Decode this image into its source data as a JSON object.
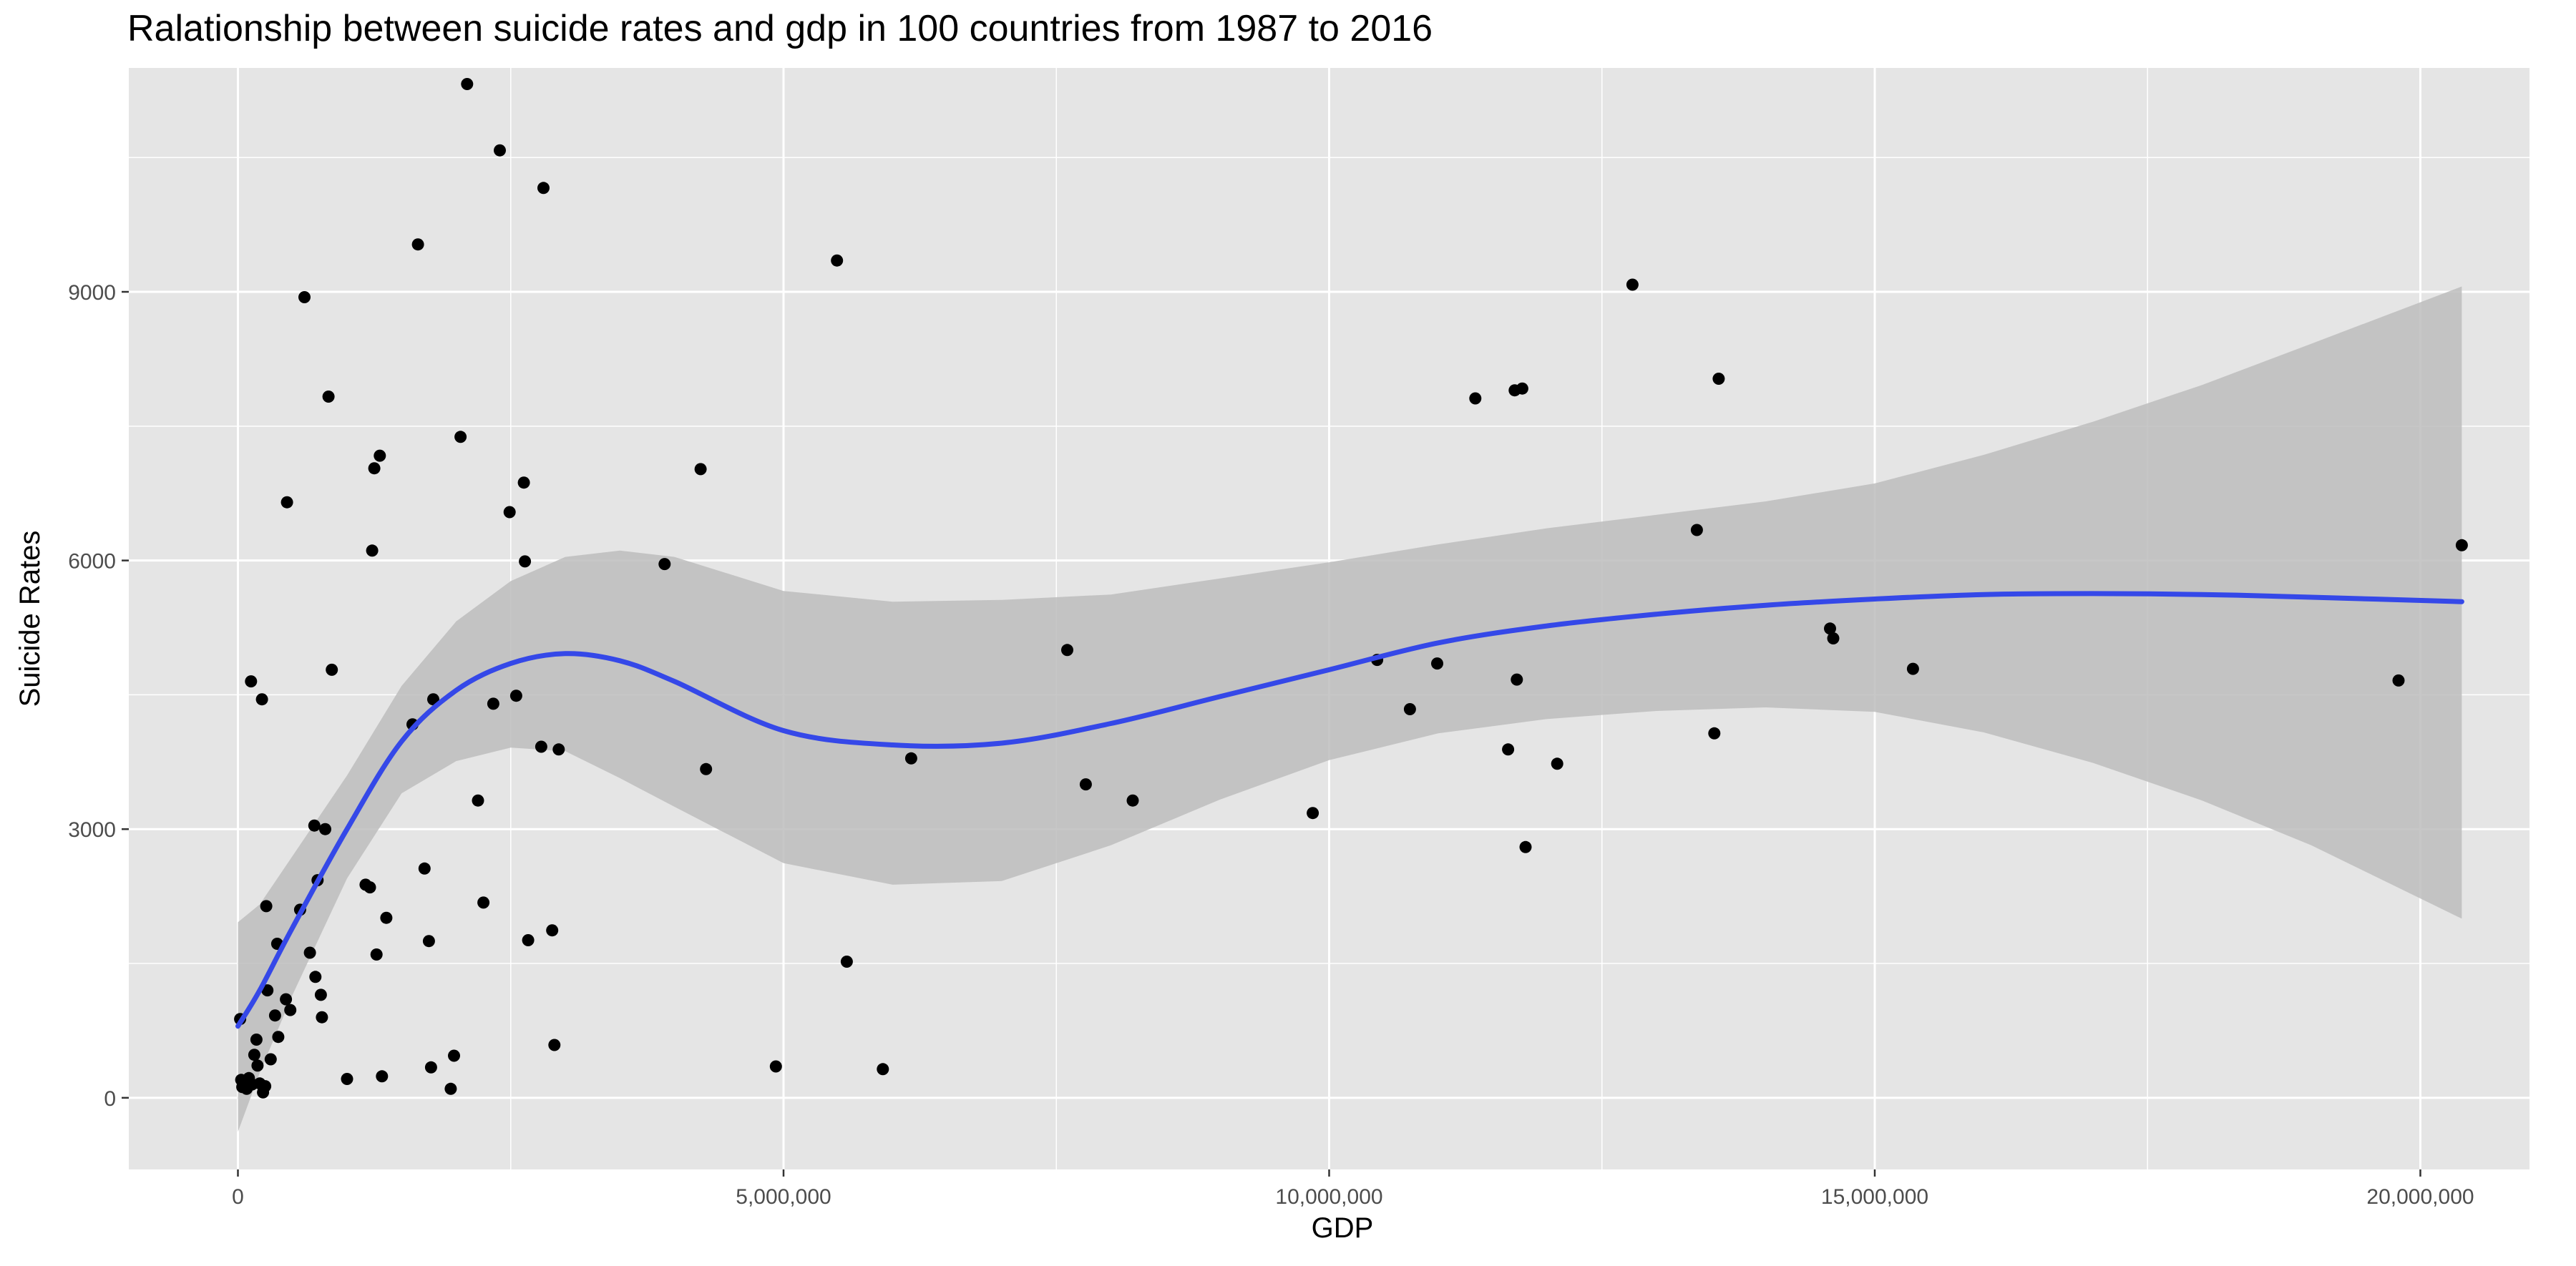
{
  "chart_data": {
    "type": "scatter",
    "title": "Ralationship between suicide rates and gdp in 100 countries from 1987 to 2016",
    "xlabel": "GDP",
    "ylabel": "Suicide Rates",
    "xlim": [
      -1000000,
      21000000
    ],
    "ylim": [
      -800,
      11500
    ],
    "x_ticks": [
      0,
      5000000,
      10000000,
      15000000,
      20000000
    ],
    "x_tick_labels": [
      "0",
      "5,000,000",
      "10,000,000",
      "15,000,000",
      "20,000,000"
    ],
    "y_ticks": [
      0,
      3000,
      6000,
      9000
    ],
    "y_tick_labels": [
      "0",
      "3000",
      "6000",
      "9000"
    ],
    "grid": true,
    "colors": {
      "panel_bg": "#e5e5e5",
      "grid": "#ffffff",
      "points": "#000000",
      "smooth_line": "#3548e8",
      "confidence_band": "#bdbdbd"
    },
    "points": [
      {
        "x": 20000,
        "y": 880
      },
      {
        "x": 30000,
        "y": 200
      },
      {
        "x": 40000,
        "y": 120
      },
      {
        "x": 60000,
        "y": 180
      },
      {
        "x": 80000,
        "y": 100
      },
      {
        "x": 100000,
        "y": 220
      },
      {
        "x": 120000,
        "y": 4650
      },
      {
        "x": 130000,
        "y": 150
      },
      {
        "x": 150000,
        "y": 480
      },
      {
        "x": 170000,
        "y": 650
      },
      {
        "x": 180000,
        "y": 360
      },
      {
        "x": 200000,
        "y": 160
      },
      {
        "x": 220000,
        "y": 4450
      },
      {
        "x": 230000,
        "y": 60
      },
      {
        "x": 250000,
        "y": 130
      },
      {
        "x": 260000,
        "y": 2140
      },
      {
        "x": 270000,
        "y": 1200
      },
      {
        "x": 300000,
        "y": 430
      },
      {
        "x": 340000,
        "y": 920
      },
      {
        "x": 360000,
        "y": 1720
      },
      {
        "x": 370000,
        "y": 680
      },
      {
        "x": 440000,
        "y": 1100
      },
      {
        "x": 450000,
        "y": 6650
      },
      {
        "x": 480000,
        "y": 980
      },
      {
        "x": 570000,
        "y": 2100
      },
      {
        "x": 610000,
        "y": 8940
      },
      {
        "x": 660000,
        "y": 1620
      },
      {
        "x": 700000,
        "y": 3040
      },
      {
        "x": 710000,
        "y": 1350
      },
      {
        "x": 730000,
        "y": 2430
      },
      {
        "x": 760000,
        "y": 1150
      },
      {
        "x": 770000,
        "y": 900
      },
      {
        "x": 800000,
        "y": 3000
      },
      {
        "x": 830000,
        "y": 7830
      },
      {
        "x": 860000,
        "y": 4780
      },
      {
        "x": 1000000,
        "y": 210
      },
      {
        "x": 1170000,
        "y": 2380
      },
      {
        "x": 1210000,
        "y": 2350
      },
      {
        "x": 1230000,
        "y": 6110
      },
      {
        "x": 1250000,
        "y": 7030
      },
      {
        "x": 1270000,
        "y": 1600
      },
      {
        "x": 1300000,
        "y": 7170
      },
      {
        "x": 1320000,
        "y": 240
      },
      {
        "x": 1360000,
        "y": 2010
      },
      {
        "x": 1600000,
        "y": 4170
      },
      {
        "x": 1650000,
        "y": 9530
      },
      {
        "x": 1710000,
        "y": 2560
      },
      {
        "x": 1750000,
        "y": 1750
      },
      {
        "x": 1770000,
        "y": 340
      },
      {
        "x": 1790000,
        "y": 4450
      },
      {
        "x": 1950000,
        "y": 100
      },
      {
        "x": 1980000,
        "y": 470
      },
      {
        "x": 2040000,
        "y": 7380
      },
      {
        "x": 2100000,
        "y": 11320
      },
      {
        "x": 2200000,
        "y": 3320
      },
      {
        "x": 2250000,
        "y": 2180
      },
      {
        "x": 2340000,
        "y": 4400
      },
      {
        "x": 2400000,
        "y": 10580
      },
      {
        "x": 2490000,
        "y": 6540
      },
      {
        "x": 2550000,
        "y": 4490
      },
      {
        "x": 2620000,
        "y": 6870
      },
      {
        "x": 2630000,
        "y": 5990
      },
      {
        "x": 2660000,
        "y": 1760
      },
      {
        "x": 2780000,
        "y": 3920
      },
      {
        "x": 2800000,
        "y": 10160
      },
      {
        "x": 2880000,
        "y": 1870
      },
      {
        "x": 2900000,
        "y": 590
      },
      {
        "x": 2940000,
        "y": 3890
      },
      {
        "x": 3910000,
        "y": 5960
      },
      {
        "x": 4240000,
        "y": 7020
      },
      {
        "x": 4290000,
        "y": 3670
      },
      {
        "x": 4930000,
        "y": 350
      },
      {
        "x": 5490000,
        "y": 9350
      },
      {
        "x": 5580000,
        "y": 1520
      },
      {
        "x": 5910000,
        "y": 320
      },
      {
        "x": 6170000,
        "y": 3790
      },
      {
        "x": 7600000,
        "y": 5000
      },
      {
        "x": 7770000,
        "y": 3500
      },
      {
        "x": 8200000,
        "y": 3320
      },
      {
        "x": 9850000,
        "y": 3180
      },
      {
        "x": 10440000,
        "y": 4890
      },
      {
        "x": 10740000,
        "y": 4340
      },
      {
        "x": 10990000,
        "y": 4850
      },
      {
        "x": 11340000,
        "y": 7810
      },
      {
        "x": 11640000,
        "y": 3890
      },
      {
        "x": 11700000,
        "y": 7900
      },
      {
        "x": 11720000,
        "y": 4670
      },
      {
        "x": 11770000,
        "y": 7920
      },
      {
        "x": 11800000,
        "y": 2800
      },
      {
        "x": 12090000,
        "y": 3730
      },
      {
        "x": 12780000,
        "y": 9080
      },
      {
        "x": 13370000,
        "y": 6340
      },
      {
        "x": 13530000,
        "y": 4070
      },
      {
        "x": 13570000,
        "y": 8030
      },
      {
        "x": 14590000,
        "y": 5240
      },
      {
        "x": 14620000,
        "y": 5130
      },
      {
        "x": 15350000,
        "y": 4790
      },
      {
        "x": 19800000,
        "y": 4660
      },
      {
        "x": 20380000,
        "y": 6170
      }
    ],
    "smooth": {
      "method": "loess",
      "x": [
        0,
        200000,
        500000,
        1000000,
        1500000,
        2000000,
        2500000,
        3000000,
        3500000,
        4000000,
        5000000,
        6000000,
        7000000,
        8000000,
        9000000,
        10000000,
        11000000,
        12000000,
        13000000,
        14000000,
        15000000,
        16000000,
        17000000,
        18000000,
        19000000,
        20380000
      ],
      "y": [
        800,
        1200,
        1900,
        3000,
        3980,
        4550,
        4850,
        4960,
        4880,
        4650,
        4100,
        3940,
        3960,
        4180,
        4480,
        4780,
        5080,
        5270,
        5400,
        5500,
        5570,
        5620,
        5630,
        5620,
        5590,
        5540
      ],
      "lower": [
        -380,
        280,
        1150,
        2450,
        3400,
        3760,
        3910,
        3870,
        3570,
        3250,
        2620,
        2380,
        2420,
        2820,
        3330,
        3770,
        4070,
        4230,
        4320,
        4360,
        4310,
        4080,
        3740,
        3320,
        2820,
        2000
      ],
      "upper": [
        1960,
        2160,
        2700,
        3600,
        4600,
        5320,
        5770,
        6040,
        6110,
        6040,
        5660,
        5540,
        5560,
        5620,
        5800,
        5980,
        6180,
        6360,
        6510,
        6660,
        6860,
        7180,
        7550,
        7960,
        8420,
        9060
      ]
    }
  }
}
